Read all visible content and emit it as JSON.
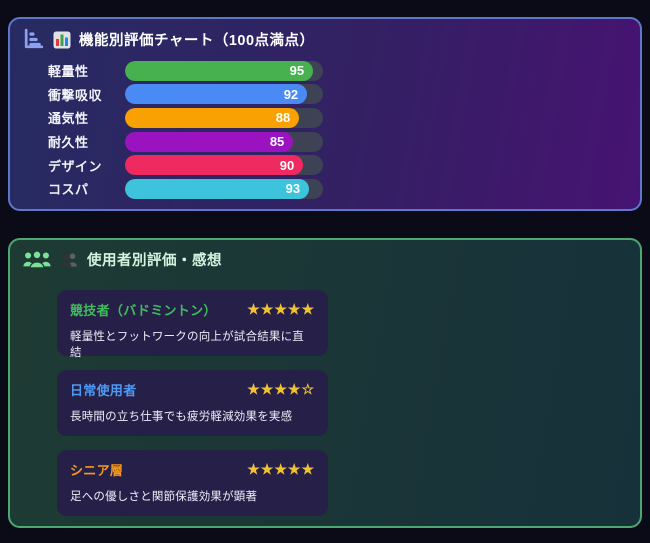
{
  "page": {
    "background": "#0b0b17"
  },
  "chart_panel": {
    "title": "機能別評価チャート（100点満点）",
    "icon": "horizontal-bar-chart-axis-icon",
    "emoji": "bar-chart-emoji",
    "border_color": "#5f77c8",
    "track_color": "#3d4254",
    "max_score": 100,
    "bars": [
      {
        "label": "軽量性",
        "value": 95,
        "color": "#46b14e"
      },
      {
        "label": "衝撃吸収",
        "value": 92,
        "color": "#4a8af4"
      },
      {
        "label": "通気性",
        "value": 88,
        "color": "#f9a002"
      },
      {
        "label": "耐久性",
        "value": 85,
        "color": "#9b13c0"
      },
      {
        "label": "デザイン",
        "value": 90,
        "color": "#ee2a60"
      },
      {
        "label": "コスパ",
        "value": 93,
        "color": "#3ec3dc"
      }
    ]
  },
  "reviews_panel": {
    "title": "使用者別評価・感想",
    "icon": "users-icon",
    "emoji": "busts-in-silhouette-emoji",
    "border_color": "#4ca871",
    "star_color": "#f1c232",
    "cards": [
      {
        "name": "競技者（バドミントン）",
        "name_color": "#3fbf5a",
        "stars": "★★★★★",
        "rating": 5,
        "comment": "軽量性とフットワークの向上が試合結果に直結"
      },
      {
        "name": "日常使用者",
        "name_color": "#4d9af5",
        "stars": "★★★★☆",
        "rating": 4,
        "comment": "長時間の立ち仕事でも疲労軽減効果を実感"
      },
      {
        "name": "シニア層",
        "name_color": "#f79a1b",
        "stars": "★★★★★",
        "rating": 5,
        "comment": "足への優しさと関節保護効果が顕著"
      }
    ]
  },
  "chart_data": {
    "type": "bar",
    "orientation": "horizontal",
    "title": "機能別評価チャート（100点満点）",
    "categories": [
      "軽量性",
      "衝撃吸収",
      "通気性",
      "耐久性",
      "デザイン",
      "コスパ"
    ],
    "values": [
      95,
      92,
      88,
      85,
      90,
      93
    ],
    "bar_colors": [
      "#46b14e",
      "#4a8af4",
      "#f9a002",
      "#9b13c0",
      "#ee2a60",
      "#3ec3dc"
    ],
    "xlim": [
      0,
      100
    ],
    "data_labels": true,
    "legend": false,
    "grid": false
  }
}
